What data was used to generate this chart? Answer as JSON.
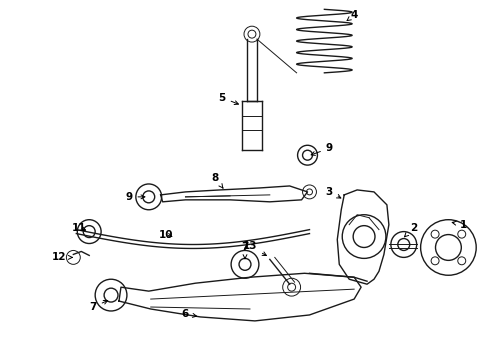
{
  "bg_color": "#ffffff",
  "line_color": "#1a1a1a",
  "label_color": "#000000",
  "label_fontsize": 7.5,
  "figsize": [
    4.9,
    3.6
  ],
  "dpi": 100
}
